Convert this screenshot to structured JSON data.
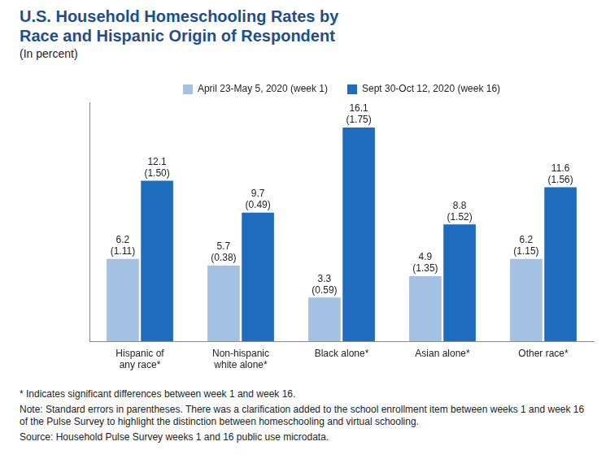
{
  "chart_data": {
    "type": "bar",
    "title": "U.S. Household Homeschooling Rates by Race and Hispanic Origin of Respondent",
    "subtitle": "(In percent)",
    "categories": [
      "Hispanic of any race*",
      "Non-hispanic white alone*",
      "Black alone*",
      "Asian alone*",
      "Other race*"
    ],
    "series": [
      {
        "name": "April 23-May 5, 2020 (week 1)",
        "color": "#a4c0e2",
        "values": [
          6.2,
          5.7,
          3.3,
          4.9,
          6.2
        ],
        "errors": [
          1.11,
          0.38,
          0.59,
          1.35,
          1.15
        ]
      },
      {
        "name": "Sept 30-Oct 12, 2020 (week 16)",
        "color": "#1f6cbf",
        "values": [
          12.1,
          9.7,
          16.1,
          8.8,
          11.6
        ],
        "errors": [
          1.5,
          0.49,
          1.75,
          1.52,
          1.56
        ]
      }
    ],
    "ylim": [
      0,
      18
    ],
    "grid": false,
    "legend": "top",
    "data_labels": true,
    "tick_labels": "x",
    "notes": [
      "* Indicates significant differences between week 1 and week 16.",
      "Note: Standard errors in parentheses. There was a clarification added to the school enrollment item between weeks 1 and week 16 of the Pulse Survey to highlight the distinction between homeschooling and virtual schooling.",
      "Source: Household Pulse Survey weeks 1 and 16 public use microdata."
    ]
  }
}
